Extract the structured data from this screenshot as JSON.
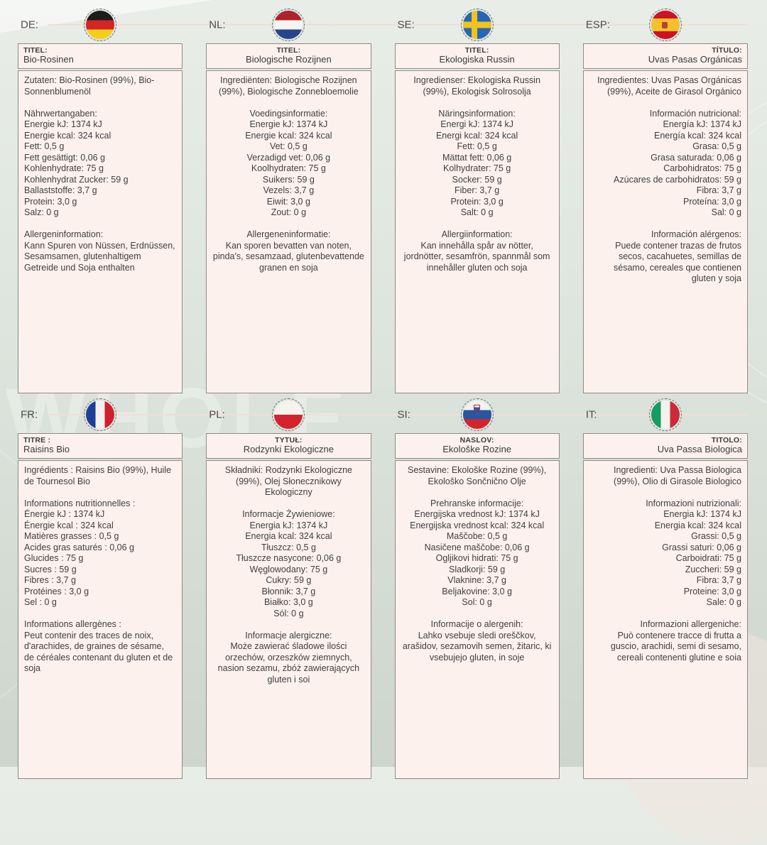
{
  "page": {
    "watermark": "WHOLE",
    "colors": {
      "background": "#dde4dd",
      "panel_background": "#fdf1ee",
      "header_line": "#f2ddd6",
      "text": "#3f3f3f",
      "box_border": "#8f8a86"
    }
  },
  "panels": [
    {
      "code": "DE:",
      "flag": "de",
      "align": "left",
      "title_label": "TITEL:",
      "title": "Bio-Rosinen",
      "ingredients": "Zutaten: Bio-Rosinen (99%), Bio-Sonnenblumenöl",
      "nutrition_header": "Nährwertangaben:",
      "nutrition": [
        "Energie kJ: 1374 kJ",
        "Energie kcal: 324 kcal",
        "Fett: 0,5 g",
        "Fett gesättigt: 0,06 g",
        "Kohlenhydrate: 75 g",
        "Kohlenhydrat Zucker: 59 g",
        "Ballaststoffe: 3,7 g",
        "Protein: 3,0 g",
        "Salz: 0 g"
      ],
      "allergen_header": "Allergeninformation:",
      "allergen": "Kann Spuren von Nüssen, Erdnüssen, Sesamsamen, glutenhaltigem Getreide und Soja enthalten"
    },
    {
      "code": "NL:",
      "flag": "nl",
      "align": "center",
      "title_label": "TITEL:",
      "title": "Biologische Rozijnen",
      "ingredients": "Ingrediënten: Biologische Rozijnen (99%), Biologische Zonnebloemolie",
      "nutrition_header": "Voedingsinformatie:",
      "nutrition": [
        "Energie kJ: 1374 kJ",
        "Energie kcal: 324 kcal",
        "Vet: 0,5 g",
        "Verzadigd vet: 0,06 g",
        "Koolhydraten: 75 g",
        "Suikers: 59 g",
        "Vezels: 3,7 g",
        "Eiwit: 3,0 g",
        "Zout: 0 g"
      ],
      "allergen_header": "Allergeneninformatie:",
      "allergen": "Kan sporen bevatten van noten, pinda's, sesamzaad, glutenbevattende granen en soja"
    },
    {
      "code": "SE:",
      "flag": "se",
      "align": "center",
      "title_label": "TITEL:",
      "title": "Ekologiska Russin",
      "ingredients": "Ingredienser: Ekologiska Russin (99%), Ekologisk Solrosolja",
      "nutrition_header": "Näringsinformation:",
      "nutrition": [
        "Energi kJ: 1374 kJ",
        "Energi kcal: 324 kcal",
        "Fett: 0,5 g",
        "Mättat fett: 0,06 g",
        "Kolhydrater: 75 g",
        "Socker: 59 g",
        "Fiber: 3,7 g",
        "Protein: 3,0 g",
        "Salt: 0 g"
      ],
      "allergen_header": "Allergiinformation:",
      "allergen": "Kan innehålla spår av nötter, jordnötter, sesamfrön, spannmål som innehåller gluten och soja"
    },
    {
      "code": "ESP:",
      "flag": "esp",
      "align": "right",
      "title_label": "TÍTULO:",
      "title": "Uvas Pasas Orgánicas",
      "ingredients": "Ingredientes: Uvas Pasas Orgánicas (99%), Aceite de Girasol Orgánico",
      "nutrition_header": "Información nutricional:",
      "nutrition": [
        "Energía kJ: 1374 kJ",
        "Energía kcal: 324 kcal",
        "Grasa: 0,5 g",
        "Grasa saturada: 0,06 g",
        "Carbohidratos: 75 g",
        "Azúcares de carbohidratos: 59 g",
        "Fibra: 3,7 g",
        "Proteína: 3,0 g",
        "Sal: 0 g"
      ],
      "allergen_header": "Información alérgenos:",
      "allergen": "Puede contener trazas de frutos secos, cacahuetes, semillas de sésamo, cereales que contienen gluten y soja"
    },
    {
      "code": "FR:",
      "flag": "fr",
      "align": "left",
      "title_label": "TITRE :",
      "title": "Raisins Bio",
      "ingredients": "Ingrédients : Raisins Bio (99%), Huile de Tournesol Bio",
      "nutrition_header": "Informations nutritionnelles :",
      "nutrition": [
        "Énergie kJ : 1374 kJ",
        "Énergie kcal : 324 kcal",
        "Matières grasses : 0,5 g",
        "Acides gras saturés : 0,06 g",
        "Glucides : 75 g",
        "Sucres : 59 g",
        "Fibres : 3,7 g",
        "Protéines : 3,0 g",
        "Sel : 0 g"
      ],
      "allergen_header": "Informations allergènes :",
      "allergen": "Peut contenir des traces de noix, d'arachides, de graines de sésame, de céréales contenant du gluten et de soja"
    },
    {
      "code": "PL:",
      "flag": "pl",
      "align": "center",
      "title_label": "TYTUŁ:",
      "title": "Rodzynki Ekologiczne",
      "ingredients": "Składniki: Rodzynki Ekologiczne (99%), Olej Słonecznikowy Ekologiczny",
      "nutrition_header": "Informacje Żywieniowe:",
      "nutrition": [
        "Energia kJ: 1374 kJ",
        "Energia kcal: 324 kcal",
        "Tłuszcz: 0,5 g",
        "Tłuszcze nasycone: 0,06 g",
        "Węglowodany: 75 g",
        "Cukry: 59 g",
        "Błonnik: 3,7 g",
        "Białko: 3,0 g",
        "Sól: 0 g"
      ],
      "allergen_header": "Informacje alergiczne:",
      "allergen": "Może zawierać śladowe ilości orzechów, orzeszków ziemnych, nasion sezamu, zbóż zawierających gluten i soi"
    },
    {
      "code": "SI:",
      "flag": "si",
      "align": "center",
      "title_label": "NASLOV:",
      "title": "Ekološke Rozine",
      "ingredients": "Sestavine: Ekološke Rozine (99%), Ekološko Sončnično Olje",
      "nutrition_header": "Prehranske informacije:",
      "nutrition": [
        "Energijska vrednost kJ: 1374 kJ",
        "Energijska vrednost kcal: 324 kcal",
        "Maščobe: 0,5 g",
        "Nasičene maščobe: 0,06 g",
        "Ogljikovi hidrati: 75 g",
        "Sladkorji: 59 g",
        "Vlaknine: 3,7 g",
        "Beljakovine: 3,0 g",
        "Sol: 0 g"
      ],
      "allergen_header": "Informacije o alergenih:",
      "allergen": "Lahko vsebuje sledi oreščkov, arašidov, sezamovih semen, žitaric, ki vsebujejo gluten, in soje"
    },
    {
      "code": "IT:",
      "flag": "it",
      "align": "right",
      "title_label": "TITOLO:",
      "title": "Uva Passa Biologica",
      "ingredients": "Ingredienti: Uva Passa Biologica (99%), Olio di Girasole Biologico",
      "nutrition_header": "Informazioni nutrizionali:",
      "nutrition": [
        "Energia kJ: 1374 kJ",
        "Energia kcal: 324 kcal",
        "Grassi: 0,5 g",
        "Grassi saturi: 0,06 g",
        "Carboidrati: 75 g",
        "Zuccheri: 59 g",
        "Fibra: 3,7 g",
        "Proteine: 3,0 g",
        "Sale: 0 g"
      ],
      "allergen_header": "Informazioni allergeniche:",
      "allergen": "Può contenere tracce di frutta a guscio, arachidi, semi di sesamo, cereali contenenti glutine e soia"
    }
  ]
}
